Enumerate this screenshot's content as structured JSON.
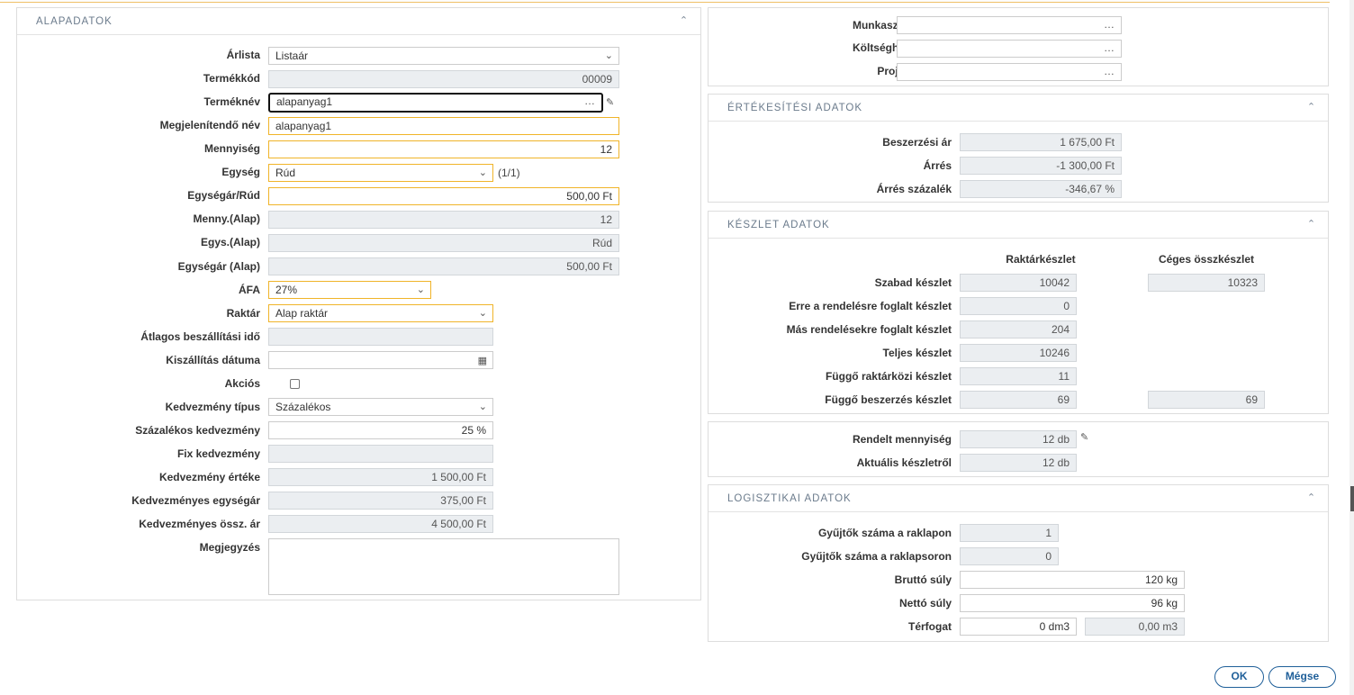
{
  "left": {
    "title": "ALAPADATOK",
    "arlista": {
      "label": "Árlista",
      "value": "Listaár"
    },
    "termekkod": {
      "label": "Termékkód",
      "value": "00009"
    },
    "termeknev": {
      "label": "Terméknév",
      "value": "alapanyag1"
    },
    "megjelenitendo": {
      "label": "Megjelenítendő név",
      "value": "alapanyag1"
    },
    "mennyiseg": {
      "label": "Mennyiség",
      "value": "12"
    },
    "egyseg": {
      "label": "Egység",
      "value": "Rúd",
      "extra": "(1/1)"
    },
    "egysegar": {
      "label": "Egységár/Rúd",
      "value": "500,00 Ft"
    },
    "menny_alap": {
      "label": "Menny.(Alap)",
      "value": "12"
    },
    "egys_alap": {
      "label": "Egys.(Alap)",
      "value": "Rúd"
    },
    "egysegar_alap": {
      "label": "Egységár (Alap)",
      "value": "500,00 Ft"
    },
    "afa": {
      "label": "ÁFA",
      "value": "27%"
    },
    "raktar": {
      "label": "Raktár",
      "value": "Alap raktár"
    },
    "beszallitasi_ido": {
      "label": "Átlagos beszállítási idő",
      "value": ""
    },
    "kiszallitas": {
      "label": "Kiszállítás dátuma",
      "value": ""
    },
    "akcios": {
      "label": "Akciós",
      "checked": false
    },
    "kedv_tipus": {
      "label": "Kedvezmény típus",
      "value": "Százalékos"
    },
    "szazalekos_kedv": {
      "label": "Százalékos kedvezmény",
      "value": "25 %"
    },
    "fix_kedv": {
      "label": "Fix kedvezmény",
      "value": ""
    },
    "kedv_erteke": {
      "label": "Kedvezmény értéke",
      "value": "1 500,00 Ft"
    },
    "kedv_egysegar": {
      "label": "Kedvezményes egységár",
      "value": "375,00 Ft"
    },
    "kedv_ossz": {
      "label": "Kedvezményes össz. ár",
      "value": "4 500,00 Ft"
    },
    "megjegyzes": {
      "label": "Megjegyzés",
      "value": ""
    }
  },
  "top_right": {
    "munkaszam": {
      "label": "Munkaszám",
      "value": ""
    },
    "koltseghely": {
      "label": "Költséghely",
      "value": ""
    },
    "projekt": {
      "label": "Projekt",
      "value": ""
    }
  },
  "ertekesitesi": {
    "title": "ÉRTÉKESÍTÉSI ADATOK",
    "beszerzesi_ar": {
      "label": "Beszerzési ár",
      "value": "1 675,00 Ft"
    },
    "arres": {
      "label": "Árrés",
      "value": "-1 300,00 Ft"
    },
    "arres_szazalek": {
      "label": "Árrés százalék",
      "value": "-346,67 %"
    }
  },
  "keszlet": {
    "title": "KÉSZLET ADATOK",
    "col1": "Raktárkészlet",
    "col2": "Céges összkészlet",
    "rows": [
      {
        "label": "Szabad készlet",
        "v1": "10042",
        "v2": "10323"
      },
      {
        "label": "Erre a rendelésre foglalt készlet",
        "v1": "0",
        "v2": null
      },
      {
        "label": "Más rendelésekre foglalt készlet",
        "v1": "204",
        "v2": null
      },
      {
        "label": "Teljes készlet",
        "v1": "10246",
        "v2": null
      },
      {
        "label": "Függő raktárközi készlet",
        "v1": "11",
        "v2": null
      },
      {
        "label": "Függő beszerzés készlet",
        "v1": "69",
        "v2": "69"
      }
    ]
  },
  "rendelt": {
    "rendelt_menny": {
      "label": "Rendelt mennyiség",
      "value": "12 db"
    },
    "aktualis": {
      "label": "Aktuális készletről",
      "value": "12 db"
    }
  },
  "logisztikai": {
    "title": "LOGISZTIKAI ADATOK",
    "gyujtok_raklap": {
      "label": "Gyűjtők száma a raklapon",
      "value": "1"
    },
    "gyujtok_raklapsor": {
      "label": "Gyűjtők száma a raklapsoron",
      "value": "0"
    },
    "brutto": {
      "label": "Bruttó súly",
      "value": "120 kg"
    },
    "netto": {
      "label": "Nettó súly",
      "value": "96 kg"
    },
    "terfogat": {
      "label": "Térfogat",
      "value": "0 dm3",
      "value2": "0,00 m3"
    }
  },
  "buttons": {
    "ok": "OK",
    "megse": "Mégse"
  },
  "icons": {
    "chevron": "chevron-up-icon",
    "dropdown": "chevron-down-icon",
    "edit": "edit-icon",
    "calendar": "calendar-icon",
    "ellipsis": "ellipsis-icon"
  }
}
